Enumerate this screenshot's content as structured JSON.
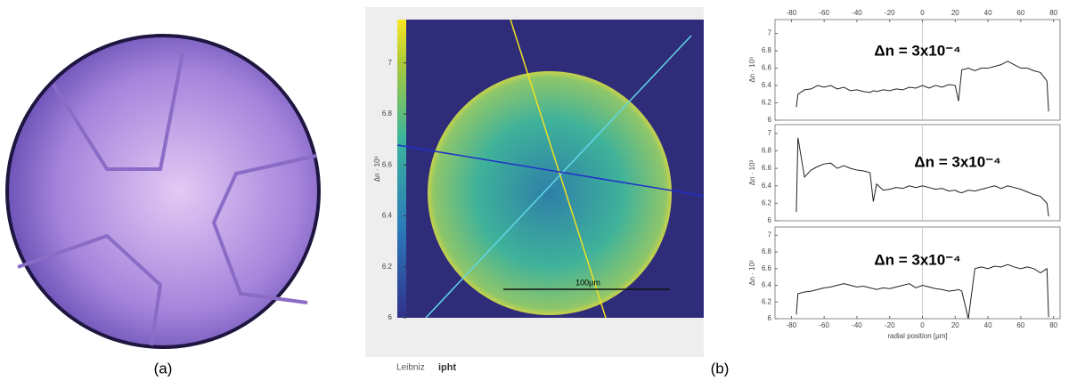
{
  "captions": [
    "(a)",
    "(b)"
  ],
  "map": {
    "colorbar_label": "Δn · 10³",
    "colorbar_lim": [
      6,
      7.17
    ],
    "colorbar_ticks": [
      6,
      6.2,
      6.4,
      6.6,
      6.8,
      7
    ],
    "scale_bar": "100μm"
  },
  "logo": [
    "Leibniz",
    "ipht"
  ],
  "chart_data": [
    {
      "type": "line",
      "y_label": "Δn · 10³",
      "annotation": "Δn = 3x10⁻⁴",
      "color": "#222222",
      "x": [
        -77,
        -76,
        -72,
        -68,
        -64,
        -60,
        -56,
        -52,
        -48,
        -44,
        -40,
        -36,
        -32,
        -30,
        -28,
        -24,
        -20,
        -16,
        -12,
        -8,
        -4,
        0,
        4,
        8,
        12,
        16,
        20,
        22,
        24,
        28,
        32,
        36,
        40,
        44,
        48,
        52,
        56,
        60,
        64,
        68,
        72,
        76,
        77
      ],
      "values": [
        6.15,
        6.3,
        6.35,
        6.36,
        6.4,
        6.38,
        6.4,
        6.36,
        6.38,
        6.34,
        6.35,
        6.33,
        6.32,
        6.34,
        6.33,
        6.35,
        6.34,
        6.36,
        6.35,
        6.38,
        6.37,
        6.4,
        6.37,
        6.4,
        6.38,
        6.41,
        6.4,
        6.22,
        6.58,
        6.6,
        6.57,
        6.6,
        6.6,
        6.62,
        6.64,
        6.68,
        6.64,
        6.6,
        6.6,
        6.57,
        6.55,
        6.45,
        6.1
      ],
      "xlim": [
        -90,
        84
      ],
      "ylim": [
        6,
        7.16
      ],
      "xticks": [
        -80,
        -60,
        -40,
        -20,
        0,
        20,
        40,
        60,
        80
      ],
      "xtick_side": "top",
      "yticks": [
        6,
        6.2,
        6.4,
        6.6,
        6.8,
        7
      ]
    },
    {
      "type": "line",
      "y_label": "Δn · 10³",
      "annotation": "Δn = 3x10⁻⁴",
      "color": "#222222",
      "x": [
        -77,
        -76,
        -72,
        -68,
        -64,
        -60,
        -56,
        -52,
        -48,
        -44,
        -40,
        -36,
        -32,
        -30,
        -28,
        -24,
        -20,
        -16,
        -12,
        -8,
        -4,
        0,
        4,
        8,
        12,
        16,
        20,
        22,
        24,
        28,
        32,
        36,
        40,
        44,
        48,
        52,
        56,
        60,
        64,
        68,
        72,
        76,
        77
      ],
      "values": [
        6.1,
        6.95,
        6.5,
        6.58,
        6.62,
        6.65,
        6.66,
        6.6,
        6.63,
        6.6,
        6.58,
        6.57,
        6.55,
        6.22,
        6.42,
        6.35,
        6.36,
        6.38,
        6.37,
        6.4,
        6.38,
        6.4,
        6.38,
        6.36,
        6.37,
        6.34,
        6.35,
        6.33,
        6.32,
        6.35,
        6.34,
        6.36,
        6.38,
        6.4,
        6.37,
        6.4,
        6.38,
        6.36,
        6.33,
        6.3,
        6.28,
        6.2,
        6.05
      ],
      "xlim": [
        -90,
        84
      ],
      "ylim": [
        6,
        7.1
      ],
      "yticks": [
        6,
        6.2,
        6.4,
        6.6,
        6.8,
        7
      ]
    },
    {
      "type": "line",
      "y_label": "Δn · 10³",
      "x_label": "radial position [μm]",
      "annotation": "Δn = 3x10⁻⁴",
      "color": "#222222",
      "x": [
        -77,
        -76,
        -72,
        -68,
        -64,
        -60,
        -56,
        -52,
        -48,
        -44,
        -40,
        -36,
        -32,
        -30,
        -28,
        -24,
        -20,
        -16,
        -12,
        -8,
        -4,
        0,
        4,
        8,
        12,
        16,
        20,
        22,
        24,
        28,
        32,
        36,
        40,
        44,
        48,
        52,
        56,
        60,
        64,
        68,
        72,
        76,
        77
      ],
      "values": [
        6.05,
        6.3,
        6.32,
        6.33,
        6.35,
        6.37,
        6.38,
        6.4,
        6.42,
        6.4,
        6.38,
        6.39,
        6.37,
        6.36,
        6.35,
        6.37,
        6.36,
        6.38,
        6.4,
        6.42,
        6.37,
        6.4,
        6.38,
        6.36,
        6.35,
        6.33,
        6.34,
        6.35,
        6.33,
        6.0,
        6.6,
        6.62,
        6.6,
        6.63,
        6.62,
        6.65,
        6.62,
        6.6,
        6.62,
        6.6,
        6.55,
        6.6,
        6.02
      ],
      "xlim": [
        -90,
        84
      ],
      "ylim": [
        6,
        7.1
      ],
      "xticks": [
        -80,
        -60,
        -40,
        -20,
        0,
        20,
        40,
        60,
        80
      ],
      "xtick_side": "bottom",
      "yticks": [
        6,
        6.2,
        6.4,
        6.6,
        6.8,
        7
      ]
    }
  ]
}
